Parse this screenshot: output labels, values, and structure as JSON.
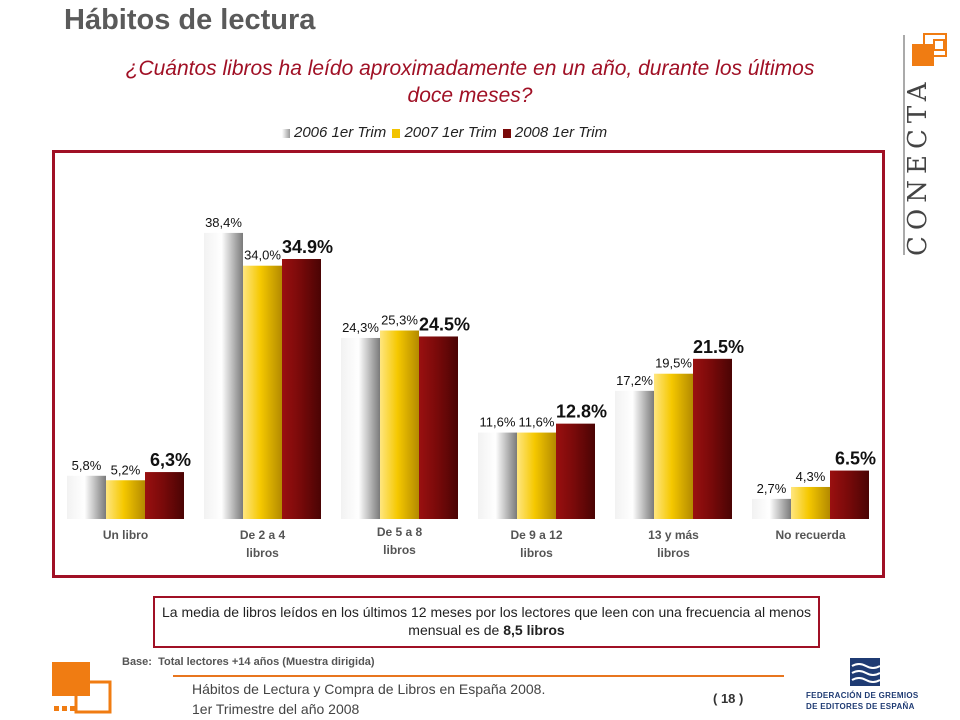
{
  "page": {
    "title": "Hábitos de lectura",
    "question": "¿Cuántos libros ha leído aproximadamente en un año, durante los últimos doce meses?",
    "mean_text_prefix": "La media de libros leídos en los últimos 12 meses por los lectores que leen con una frecuencia al menos mensual es de ",
    "mean_text_bold": "8,5 libros",
    "base_label": "Base:",
    "base_value": "Total lectores +14 años (Muestra dirigida)",
    "footer_line1": "Hábitos de Lectura y Compra de Libros en España 2008.",
    "footer_line2": "1er Trimestre del año 2008",
    "page_number": "( 18 )",
    "brand": "CONECTA",
    "fge_line1": "FEDERACIÓN DE GREMIOS",
    "fge_line2": "DE EDITORES DE ESPAÑA"
  },
  "colors": {
    "accent": "#a01025",
    "s2006": "#c8c8c8",
    "s2007": "#f2c300",
    "s2008": "#7a0a0a",
    "orange": "#f07c12"
  },
  "chart_data": {
    "type": "bar",
    "categories": [
      "Un libro",
      "De 2 a 4 libros",
      "De 5 a 8 libros",
      "De 9 a 12 libros",
      "13 y más libros",
      "No recuerda"
    ],
    "series": [
      {
        "name": "2006 1er Trim",
        "values": [
          5.8,
          38.4,
          24.3,
          11.6,
          17.2,
          2.7
        ],
        "labels": [
          "5,8%",
          "38,4%",
          "24,3%",
          "11,6%",
          "17,2%",
          "2,7%"
        ]
      },
      {
        "name": "2007 1er Trim",
        "values": [
          5.2,
          34.0,
          25.3,
          11.6,
          19.5,
          4.3
        ],
        "labels": [
          "5,2%",
          "34,0%",
          "25,3%",
          "11,6%",
          "19,5%",
          "4,3%"
        ]
      },
      {
        "name": "2008 1er Trim",
        "values": [
          6.3,
          34.9,
          24.5,
          12.8,
          21.5,
          6.5
        ],
        "labels": [
          "6,3%",
          "34.9%",
          "24.5%",
          "12.8%",
          "21.5%",
          "6.5%"
        ]
      }
    ],
    "ylim": [
      0,
      40
    ],
    "grid": false,
    "legend": "top"
  }
}
